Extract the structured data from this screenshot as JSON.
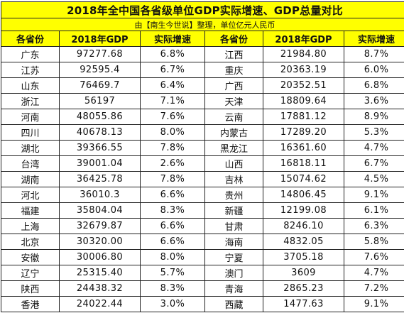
{
  "title": "2018年全中国各省级单位GDP实际增速、GDP总量对比",
  "subtitle": "由【南生今世说】整理，单位亿元人民币",
  "headers": [
    "各省份",
    "2018年GDP",
    "实际增速",
    "各省份",
    "2018年GDP",
    "实际增速"
  ],
  "rows": [
    {
      "left": {
        "province": "广东",
        "gdp": "97277.68",
        "rate": "6.8%"
      },
      "right": {
        "province": "江西",
        "gdp": "21984.80",
        "rate": "8.7%"
      }
    },
    {
      "left": {
        "province": "江苏",
        "gdp": "92595.4",
        "rate": "6.7%"
      },
      "right": {
        "province": "重庆",
        "gdp": "20363.19",
        "rate": "6.0%"
      }
    },
    {
      "left": {
        "province": "山东",
        "gdp": "76469.7",
        "rate": "6.4%"
      },
      "right": {
        "province": "广西",
        "gdp": "20352.51",
        "rate": "6.8%"
      }
    },
    {
      "left": {
        "province": "浙江",
        "gdp": "56197",
        "rate": "7.1%"
      },
      "right": {
        "province": "天津",
        "gdp": "18809.64",
        "rate": "3.6%"
      }
    },
    {
      "left": {
        "province": "河南",
        "gdp": "48055.86",
        "rate": "7.6%"
      },
      "right": {
        "province": "云南",
        "gdp": "17881.12",
        "rate": "8.9%"
      }
    },
    {
      "left": {
        "province": "四川",
        "gdp": "40678.13",
        "rate": "8.0%"
      },
      "right": {
        "province": "内蒙古",
        "gdp": "17289.20",
        "rate": "5.3%"
      }
    },
    {
      "left": {
        "province": "湖北",
        "gdp": "39366.55",
        "rate": "7.8%"
      },
      "right": {
        "province": "黑龙江",
        "gdp": "16361.60",
        "rate": "4.7%"
      }
    },
    {
      "left": {
        "province": "台湾",
        "gdp": "39001.04",
        "rate": "2.6%"
      },
      "right": {
        "province": "山西",
        "gdp": "16818.11",
        "rate": "6.7%"
      }
    },
    {
      "left": {
        "province": "湖南",
        "gdp": "36425.78",
        "rate": "7.8%"
      },
      "right": {
        "province": "吉林",
        "gdp": "15074.62",
        "rate": "4.5%"
      }
    },
    {
      "left": {
        "province": "河北",
        "gdp": "36010.3",
        "rate": "6.6%"
      },
      "right": {
        "province": "贵州",
        "gdp": "14806.45",
        "rate": "9.1%"
      }
    },
    {
      "left": {
        "province": "福建",
        "gdp": "35804.04",
        "rate": "8.3%"
      },
      "right": {
        "province": "新疆",
        "gdp": "12199.08",
        "rate": "6.1%"
      }
    },
    {
      "left": {
        "province": "上海",
        "gdp": "32679.87",
        "rate": "6.6%"
      },
      "right": {
        "province": "甘肃",
        "gdp": "8246.10",
        "rate": "6.3%"
      }
    },
    {
      "left": {
        "province": "北京",
        "gdp": "30320.00",
        "rate": "6.6%"
      },
      "right": {
        "province": "海南",
        "gdp": "4832.05",
        "rate": "5.8%"
      }
    },
    {
      "left": {
        "province": "安徽",
        "gdp": "30006.80",
        "rate": "8.0%"
      },
      "right": {
        "province": "宁夏",
        "gdp": "3705.18",
        "rate": "7.6%"
      }
    },
    {
      "left": {
        "province": "辽宁",
        "gdp": "25315.40",
        "rate": "5.7%"
      },
      "right": {
        "province": "澳门",
        "gdp": "3609",
        "rate": "4.7%"
      }
    },
    {
      "left": {
        "province": "陕西",
        "gdp": "24438.32",
        "rate": "8.3%"
      },
      "right": {
        "province": "青海",
        "gdp": "2865.23",
        "rate": "7.2%"
      }
    },
    {
      "left": {
        "province": "香港",
        "gdp": "24022.44",
        "rate": "3.0%"
      },
      "right": {
        "province": "西藏",
        "gdp": "1477.63",
        "rate": "9.1%"
      }
    }
  ],
  "colors": {
    "header_fill": "#ffff00",
    "grid_line": "#222222",
    "text": "#111111"
  }
}
